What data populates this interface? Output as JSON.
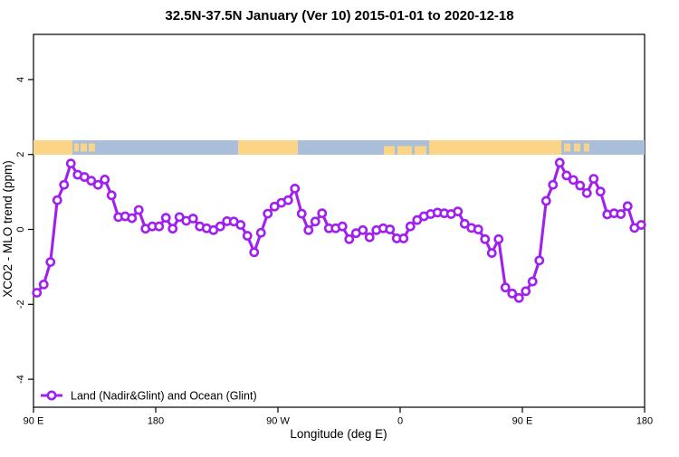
{
  "title": "32.5N-37.5N January (Ver 10)   2015-01-01 to 2020-12-18",
  "axes": {
    "x_label": "Longitude (deg E)",
    "y_label": "XCO2 - MLO trend (ppm)",
    "x_ticks": [
      {
        "lon": 90,
        "label": "90 E"
      },
      {
        "lon": 180,
        "label": "180"
      },
      {
        "lon": 270,
        "label": "90 W"
      },
      {
        "lon": 360,
        "label": "0"
      },
      {
        "lon": 450,
        "label": "90 E"
      },
      {
        "lon": 540,
        "label": "180"
      }
    ],
    "y_ticks": [
      {
        "value": -4,
        "label": "-4"
      },
      {
        "value": -2,
        "label": "-2"
      },
      {
        "value": 0,
        "label": "0"
      },
      {
        "value": 2,
        "label": "2"
      },
      {
        "value": 4,
        "label": "4"
      }
    ]
  },
  "legend": {
    "label": "Land (Nadir&Glint) and Ocean (Glint)",
    "position": "bottom-left"
  },
  "colors": {
    "series": "#A020F0",
    "marker_fill": "#FFFFFF",
    "land": "#FBD488",
    "ocean": "#A9BFD9",
    "axis": "#000000"
  },
  "chart_data": {
    "type": "line",
    "title": "32.5N-37.5N January (Ver 10)   2015-01-01 to 2020-12-18",
    "xlabel": "Longitude (deg E)",
    "ylabel": "XCO2 - MLO trend (ppm)",
    "xlim_deg_east": [
      90,
      540
    ],
    "ylim": [
      -5,
      5.2
    ],
    "x_wrap_note": "x axis runs 90E > 180 > 90W > 0 > 90E > 180 (longitude wraps past the dateline)",
    "grid": false,
    "legend_position": "bottom-left inside plot",
    "series": [
      {
        "name": "Land (Nadir&Glint) and Ocean (Glint)",
        "marker": "open-circle",
        "x_deg_east": [
          92.5,
          97.5,
          102.5,
          107.5,
          112.5,
          117.5,
          122.5,
          127.5,
          132.5,
          137.5,
          142.5,
          147.5,
          152.5,
          157.5,
          162.5,
          167.5,
          172.5,
          177.5,
          182.5,
          187.5,
          192.5,
          197.5,
          202.5,
          207.5,
          212.5,
          217.5,
          222.5,
          227.5,
          232.5,
          237.5,
          242.5,
          247.5,
          252.5,
          257.5,
          262.5,
          267.5,
          272.5,
          277.5,
          282.5,
          287.5,
          292.5,
          297.5,
          302.5,
          307.5,
          312.5,
          317.5,
          322.5,
          327.5,
          332.5,
          337.5,
          342.5,
          347.5,
          352.5,
          357.5,
          362.5,
          367.5,
          372.5,
          377.5,
          382.5,
          387.5,
          392.5,
          397.5,
          402.5,
          407.5,
          412.5,
          417.5,
          422.5,
          427.5,
          432.5,
          437.5,
          442.5,
          447.5,
          452.5,
          457.5,
          462.5,
          467.5,
          472.5,
          477.5,
          482.5,
          487.5,
          492.5,
          497.5,
          502.5,
          507.5,
          512.5,
          517.5,
          522.5,
          527.5,
          532.5,
          537.5
        ],
        "values": [
          -1.69,
          -1.47,
          -0.87,
          0.78,
          1.19,
          1.76,
          1.46,
          1.4,
          1.3,
          1.19,
          1.33,
          0.91,
          0.33,
          0.35,
          0.3,
          0.52,
          0.02,
          0.08,
          0.08,
          0.31,
          0.02,
          0.33,
          0.23,
          0.29,
          0.08,
          0.03,
          -0.02,
          0.08,
          0.22,
          0.21,
          0.12,
          -0.17,
          -0.61,
          -0.09,
          0.42,
          0.61,
          0.71,
          0.78,
          1.09,
          0.42,
          -0.02,
          0.21,
          0.43,
          0.03,
          0.03,
          0.08,
          -0.26,
          -0.1,
          -0.02,
          -0.21,
          -0.02,
          0.03,
          0.0,
          -0.24,
          -0.24,
          0.08,
          0.25,
          0.35,
          0.41,
          0.45,
          0.43,
          0.41,
          0.48,
          0.15,
          0.04,
          0.0,
          -0.26,
          -0.63,
          -0.26,
          -1.55,
          -1.71,
          -1.83,
          -1.65,
          -1.39,
          -0.83,
          0.76,
          1.19,
          1.78,
          1.44,
          1.32,
          1.17,
          0.97,
          1.35,
          1.01,
          0.4,
          0.43,
          0.41,
          0.62,
          0.04,
          0.12
        ]
      }
    ],
    "map_band": {
      "description": "world-map strip (32.5N-37.5N) drawn across the plot just above y=2: ocean in blue, land in orange",
      "y_value_center": 2.35,
      "ocean_span_deg_east": [
        90,
        540
      ],
      "land_segments_deg_east": [
        {
          "from": 90,
          "to": 118.7,
          "cover": "full"
        },
        {
          "from": 120,
          "to": 123.3,
          "cover": "mid"
        },
        {
          "from": 124.7,
          "to": 129.3,
          "cover": "mid"
        },
        {
          "from": 130.7,
          "to": 135.3,
          "cover": "mid"
        },
        {
          "from": 240.7,
          "to": 284.7,
          "cover": "full"
        },
        {
          "from": 348,
          "to": 356,
          "cover": "bottom"
        },
        {
          "from": 358,
          "to": 368.7,
          "cover": "bottom"
        },
        {
          "from": 370.7,
          "to": 379.3,
          "cover": "bottom"
        },
        {
          "from": 381.3,
          "to": 478.7,
          "cover": "full"
        },
        {
          "from": 480.7,
          "to": 485.3,
          "cover": "mid"
        },
        {
          "from": 488,
          "to": 492.7,
          "cover": "mid"
        },
        {
          "from": 495.3,
          "to": 499.3,
          "cover": "mid"
        }
      ]
    }
  }
}
